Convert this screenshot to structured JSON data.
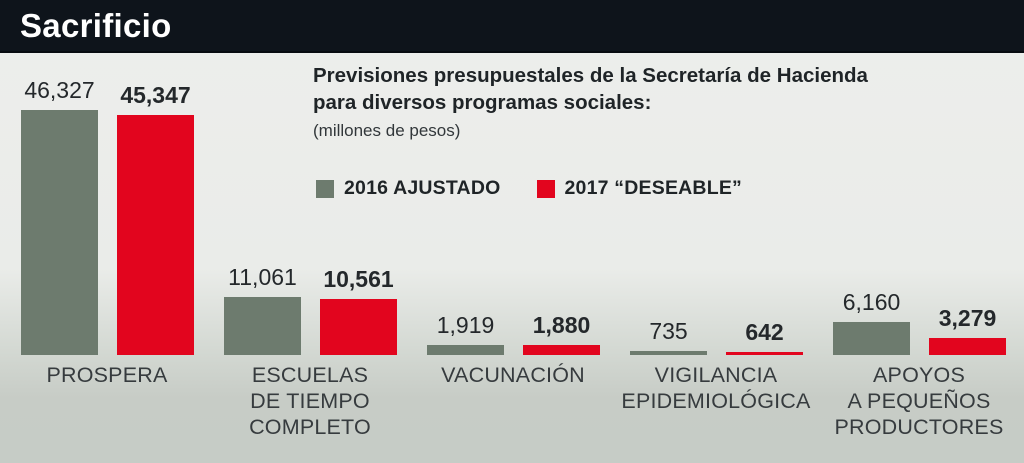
{
  "header": {
    "title": "Sacrificio"
  },
  "subtitle": {
    "line1": "Previsiones presupuestales de la Secretaría de Hacienda",
    "line2": "para diversos programas sociales:",
    "unit": "(millones de pesos)"
  },
  "legend": [
    {
      "label": "2016 AJUSTADO",
      "color": "#6d7b6e"
    },
    {
      "label": "2017 “DESEABLE”",
      "color": "#e2051e"
    }
  ],
  "colors": {
    "header_bg": "#0e141b",
    "bar_2016": "#6d7b6e",
    "bar_2017": "#e2051e",
    "background_top": "#edeeec",
    "background_bottom": "#c6ccc6"
  },
  "chart_data": {
    "type": "bar",
    "title": "Previsiones presupuestales de la Secretaría de Hacienda para diversos programas sociales:",
    "ylabel": "millones de pesos",
    "legend_position": "top",
    "grid": false,
    "ylim": [
      0,
      46327
    ],
    "categories": [
      "PROSPERA",
      "ESCUELAS\nDE TIEMPO\nCOMPLETO",
      "VACUNACIÓN",
      "VIGILANCIA\nEPIDEMIOLÓGICA",
      "APOYOS\nA PEQUEÑOS\nPRODUCTORES"
    ],
    "series": [
      {
        "name": "2016 AJUSTADO",
        "color": "#6d7b6e",
        "values": [
          46327,
          11061,
          1919,
          735,
          6160
        ],
        "labels": [
          "46,327",
          "11,061",
          "1,919",
          "735",
          "6,160"
        ]
      },
      {
        "name": "2017 “DESEABLE”",
        "color": "#e2051e",
        "values": [
          45347,
          10561,
          1880,
          642,
          3279
        ],
        "labels": [
          "45,347",
          "10,561",
          "1,880",
          "642",
          "3,279"
        ]
      }
    ]
  }
}
